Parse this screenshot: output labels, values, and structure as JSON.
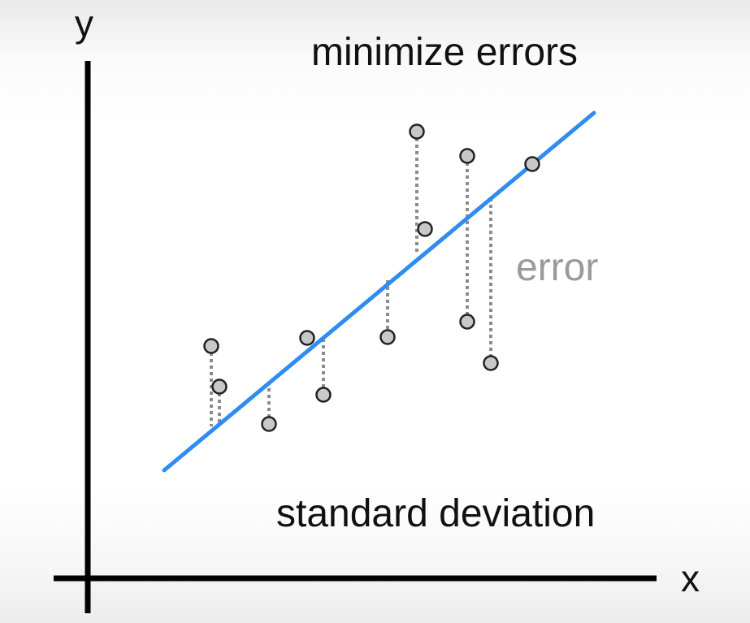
{
  "labels": {
    "y_axis": "y",
    "x_axis": "x",
    "top_caption": "minimize errors",
    "error_label": "error",
    "bottom_caption": "standard deviation"
  },
  "colors": {
    "axis": "#000000",
    "fit_line": "#2f8cf0",
    "point_fill": "#c8c8c8",
    "point_stroke": "#222222",
    "error_line": "#8c8c8c",
    "error_text": "#9a9a9a",
    "text": "#111111"
  }
}
